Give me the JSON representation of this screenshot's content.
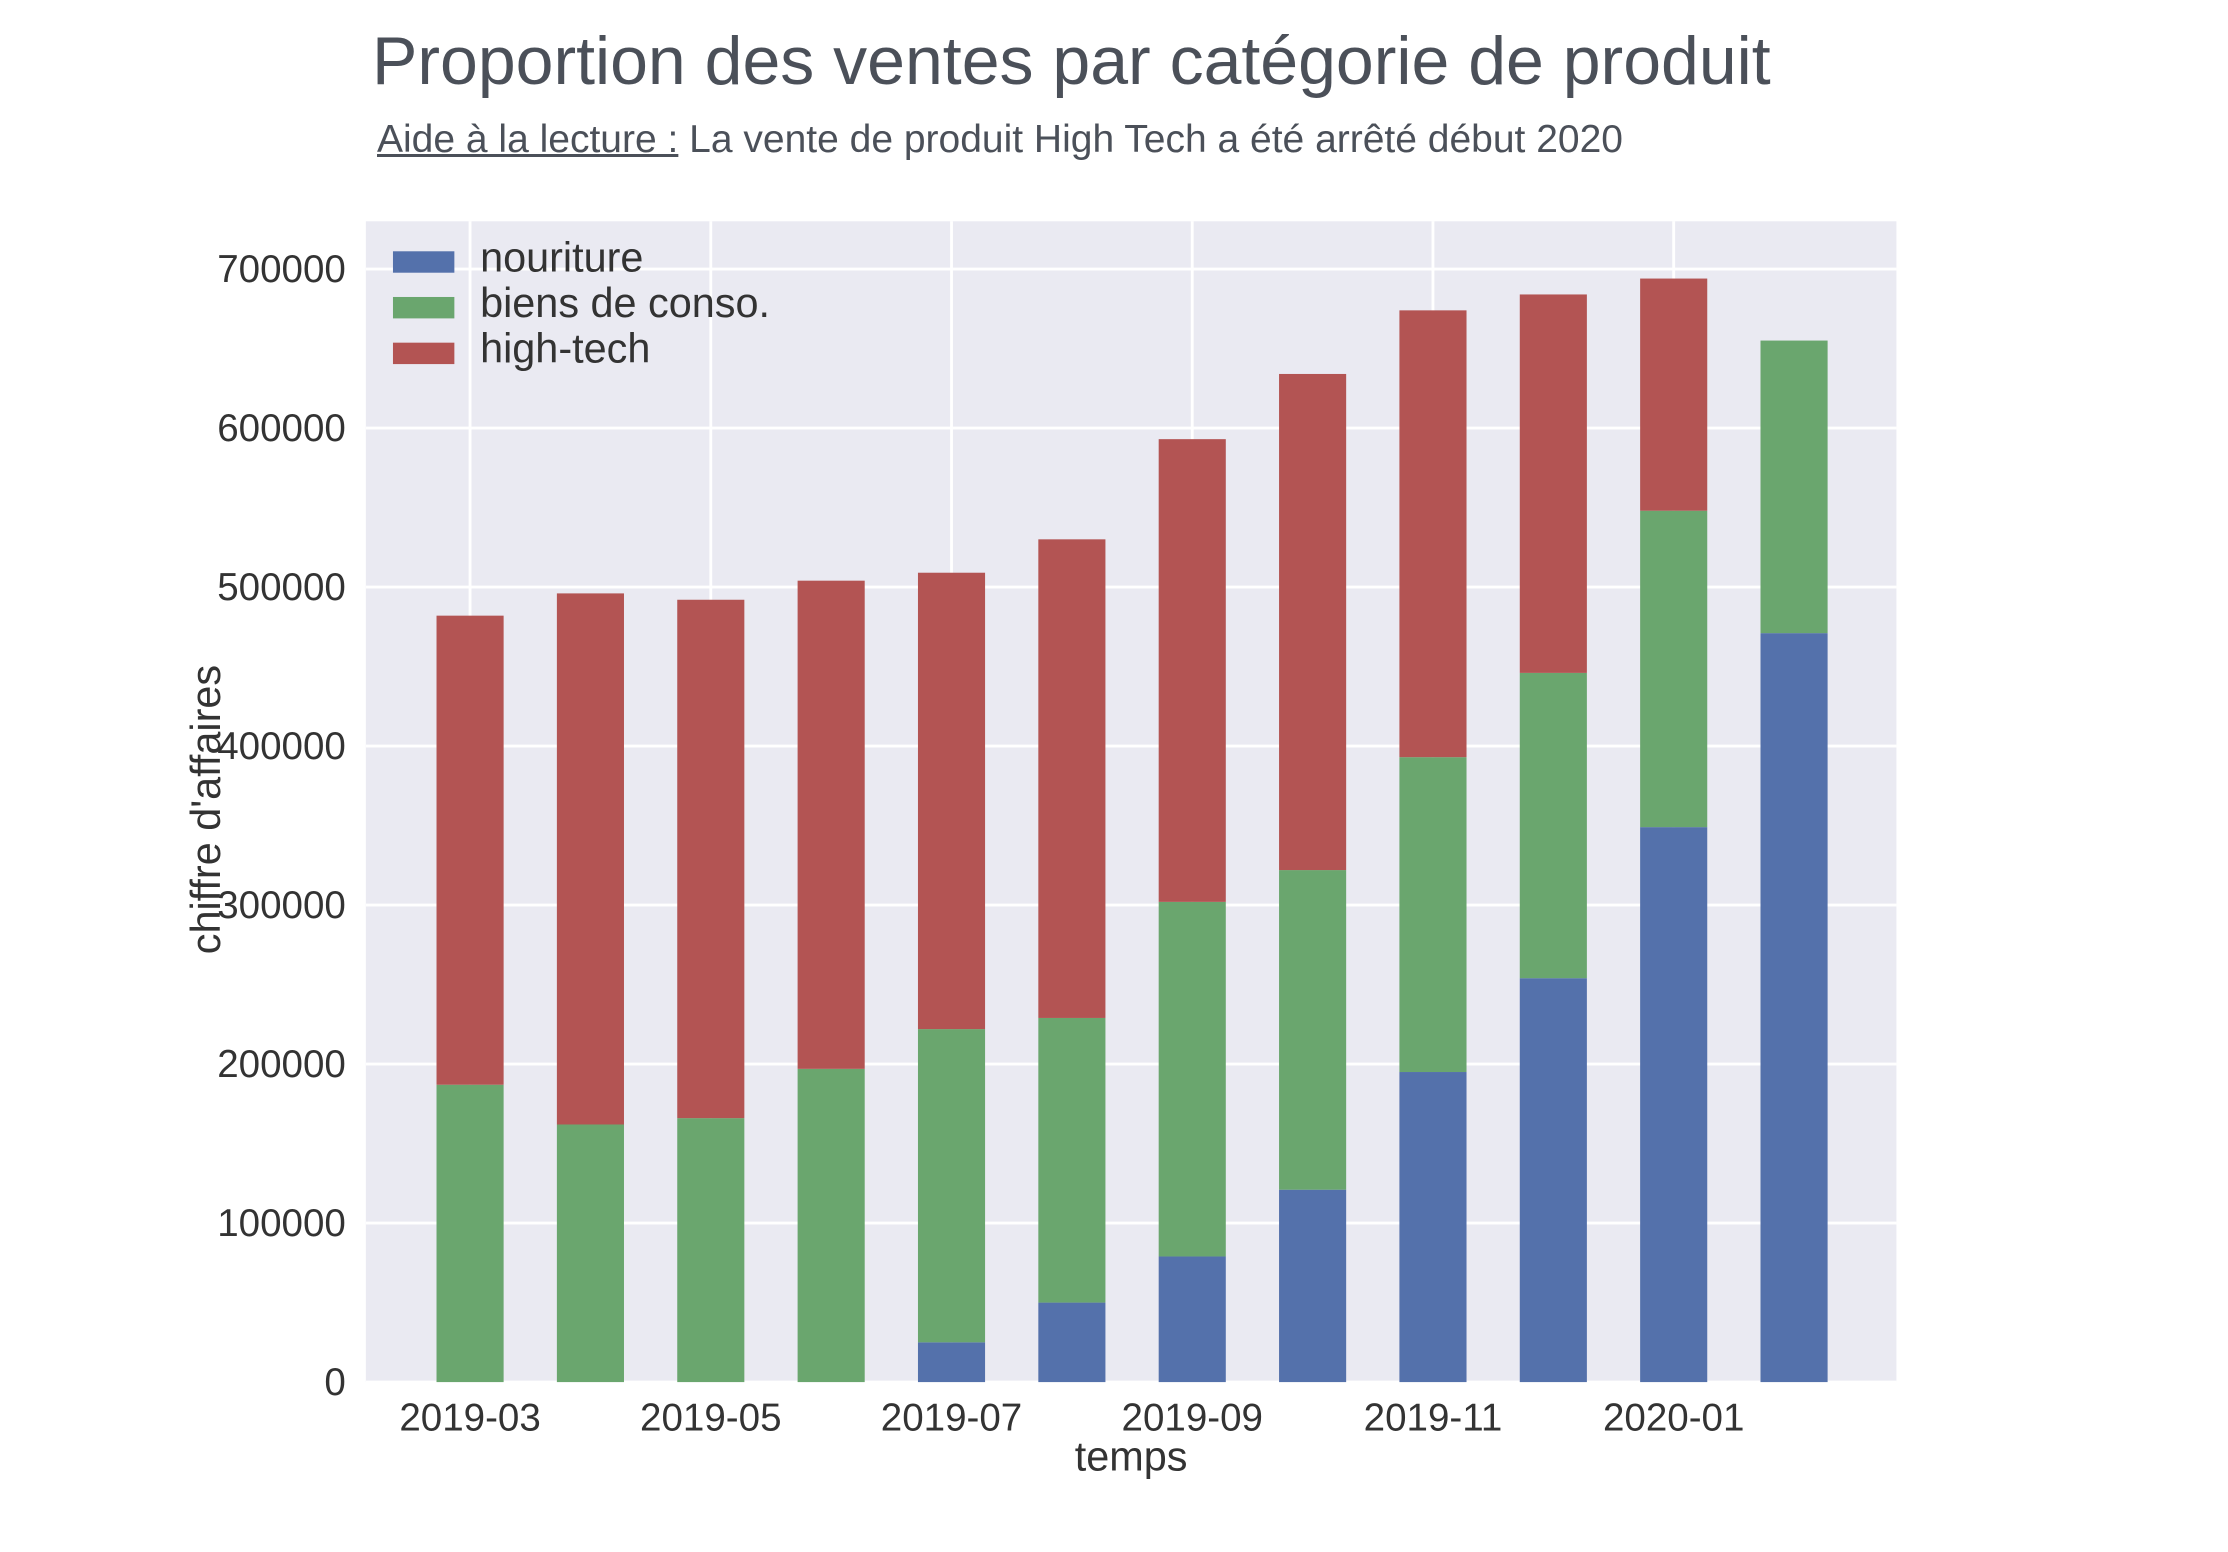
{
  "header": {
    "title": "Proportion des ventes par catégorie de produit",
    "note_label": "Aide à la lecture :",
    "note_text": " La vente de produit High Tech a été arrêté début 2020"
  },
  "chart_data": {
    "type": "bar",
    "stacked": true,
    "xlabel": "temps",
    "ylabel": "chiffre d'affaires",
    "ylim": [
      0,
      730000
    ],
    "yticks": [
      0,
      100000,
      200000,
      300000,
      400000,
      500000,
      600000,
      700000
    ],
    "ytick_labels": [
      "0",
      "100000",
      "200000",
      "300000",
      "400000",
      "500000",
      "600000",
      "700000"
    ],
    "categories": [
      "2019-03",
      "2019-04",
      "2019-05",
      "2019-06",
      "2019-07",
      "2019-08",
      "2019-09",
      "2019-10",
      "2019-11",
      "2019-12",
      "2020-01",
      "2020-02"
    ],
    "xtick_labels": [
      "2019-03",
      "2019-05",
      "2019-07",
      "2019-09",
      "2019-11",
      "2020-01"
    ],
    "grid": true,
    "legend_position": "top-left",
    "background": "#eaeaf2",
    "series": [
      {
        "name": "nouriture",
        "color": "#5471ab",
        "values": [
          0,
          0,
          0,
          0,
          25000,
          50000,
          79000,
          121000,
          195000,
          254000,
          349000,
          471000
        ]
      },
      {
        "name": "biens de conso.",
        "color": "#6aa66e",
        "values": [
          187000,
          162000,
          166000,
          197000,
          197000,
          179000,
          223000,
          201000,
          198000,
          192000,
          199000,
          184000
        ]
      },
      {
        "name": "high-tech",
        "color": "#b35453",
        "values": [
          295000,
          334000,
          326000,
          307000,
          287000,
          301000,
          291000,
          312000,
          281000,
          238000,
          146000,
          0
        ]
      }
    ]
  }
}
